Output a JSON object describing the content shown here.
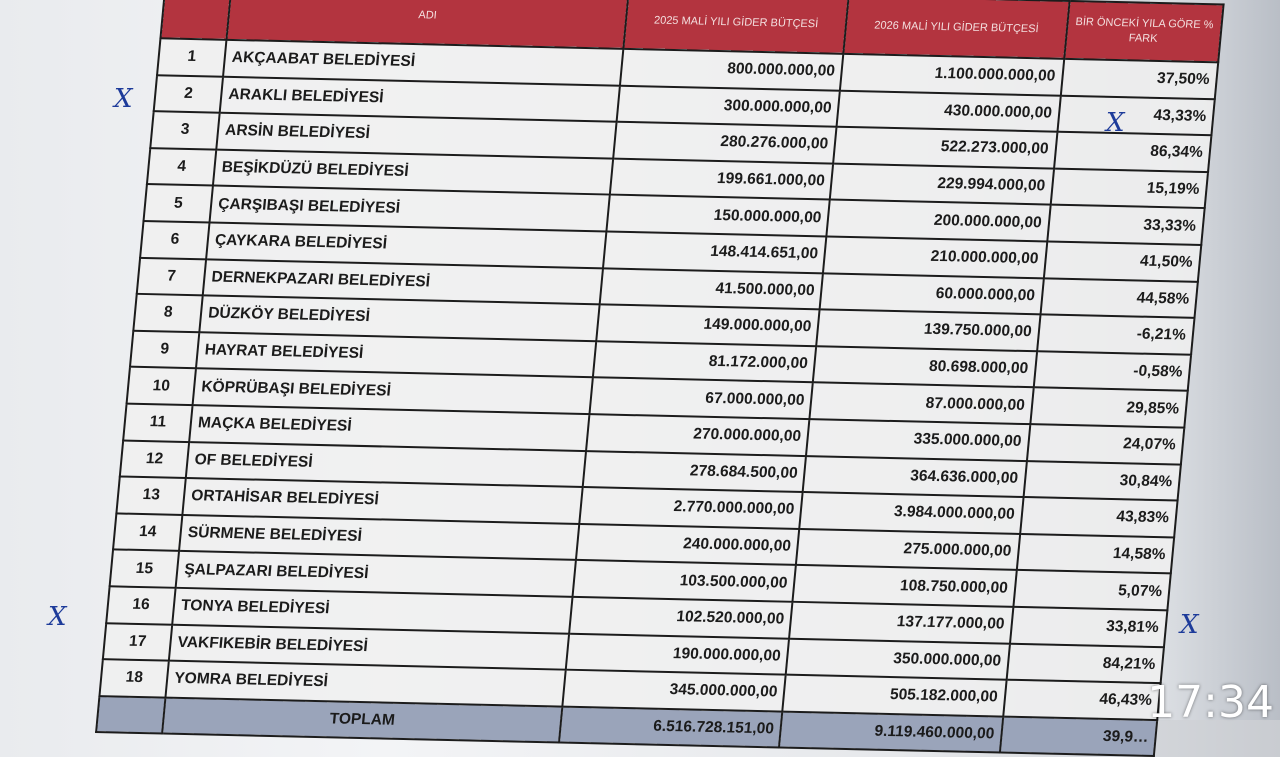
{
  "table": {
    "headers": {
      "no": "",
      "name": "ADI",
      "budget_2025": "2025 MALİ YILI GİDER BÜTÇESİ",
      "budget_2026": "2026 MALİ YILI GİDER BÜTÇESİ",
      "change": "BİR ÖNCEKİ YILA GÖRE % FARK"
    },
    "rows": [
      {
        "no": "1",
        "name": "AKÇAABAT BELEDİYESİ",
        "b2025": "800.000.000,00",
        "b2026": "1.100.000.000,00",
        "change": "37,50%"
      },
      {
        "no": "2",
        "name": "ARAKLI BELEDİYESİ",
        "b2025": "300.000.000,00",
        "b2026": "430.000.000,00",
        "change": "43,33%"
      },
      {
        "no": "3",
        "name": "ARSİN BELEDİYESİ",
        "b2025": "280.276.000,00",
        "b2026": "522.273.000,00",
        "change": "86,34%"
      },
      {
        "no": "4",
        "name": "BEŞİKDÜZÜ BELEDİYESİ",
        "b2025": "199.661.000,00",
        "b2026": "229.994.000,00",
        "change": "15,19%"
      },
      {
        "no": "5",
        "name": "ÇARŞIBAŞI BELEDİYESİ",
        "b2025": "150.000.000,00",
        "b2026": "200.000.000,00",
        "change": "33,33%"
      },
      {
        "no": "6",
        "name": "ÇAYKARA BELEDİYESİ",
        "b2025": "148.414.651,00",
        "b2026": "210.000.000,00",
        "change": "41,50%"
      },
      {
        "no": "7",
        "name": "DERNEKPAZARI BELEDİYESİ",
        "b2025": "41.500.000,00",
        "b2026": "60.000.000,00",
        "change": "44,58%"
      },
      {
        "no": "8",
        "name": "DÜZKÖY BELEDİYESİ",
        "b2025": "149.000.000,00",
        "b2026": "139.750.000,00",
        "change": "-6,21%"
      },
      {
        "no": "9",
        "name": "HAYRAT BELEDİYESİ",
        "b2025": "81.172.000,00",
        "b2026": "80.698.000,00",
        "change": "-0,58%"
      },
      {
        "no": "10",
        "name": "KÖPRÜBAŞI BELEDİYESİ",
        "b2025": "67.000.000,00",
        "b2026": "87.000.000,00",
        "change": "29,85%"
      },
      {
        "no": "11",
        "name": "MAÇKA BELEDİYESİ",
        "b2025": "270.000.000,00",
        "b2026": "335.000.000,00",
        "change": "24,07%"
      },
      {
        "no": "12",
        "name": "OF BELEDİYESİ",
        "b2025": "278.684.500,00",
        "b2026": "364.636.000,00",
        "change": "30,84%"
      },
      {
        "no": "13",
        "name": "ORTAHİSAR BELEDİYESİ",
        "b2025": "2.770.000.000,00",
        "b2026": "3.984.000.000,00",
        "change": "43,83%"
      },
      {
        "no": "14",
        "name": "SÜRMENE BELEDİYESİ",
        "b2025": "240.000.000,00",
        "b2026": "275.000.000,00",
        "change": "14,58%"
      },
      {
        "no": "15",
        "name": "ŞALPAZARI BELEDİYESİ",
        "b2025": "103.500.000,00",
        "b2026": "108.750.000,00",
        "change": "5,07%"
      },
      {
        "no": "16",
        "name": "TONYA BELEDİYESİ",
        "b2025": "102.520.000,00",
        "b2026": "137.177.000,00",
        "change": "33,81%"
      },
      {
        "no": "17",
        "name": "VAKFIKEBİR BELEDİYESİ",
        "b2025": "190.000.000,00",
        "b2026": "350.000.000,00",
        "change": "84,21%"
      },
      {
        "no": "18",
        "name": "YOMRA BELEDİYESİ",
        "b2025": "345.000.000,00",
        "b2026": "505.182.000,00",
        "change": "46,43%"
      }
    ],
    "total": {
      "label": "TOPLAM",
      "b2025": "6.516.728.151,00",
      "b2026": "9.119.460.000,00",
      "change": "39,9…"
    }
  },
  "handwritten_marks": [
    "X",
    "X",
    "X",
    "X"
  ],
  "overlay": {
    "clock": "17:34"
  },
  "colors": {
    "header": "#b3343f",
    "total_row": "#9aa4ba",
    "ink": "#1d3b9a"
  }
}
